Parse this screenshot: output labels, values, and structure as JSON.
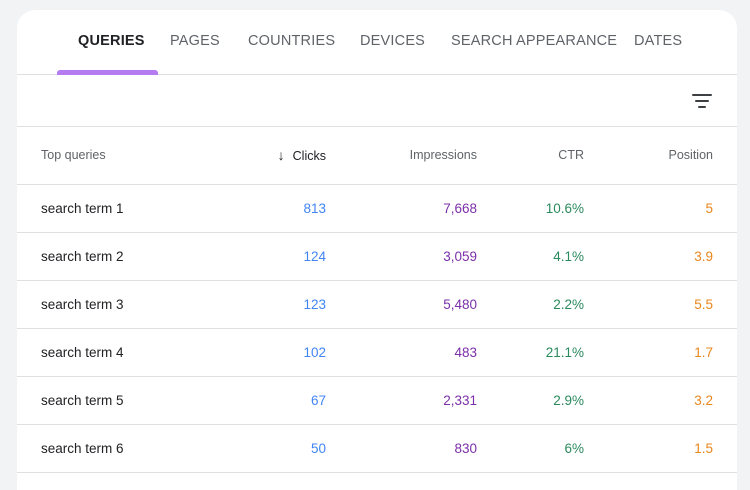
{
  "tabs": [
    {
      "label": "QUERIES",
      "active": true
    },
    {
      "label": "PAGES",
      "active": false
    },
    {
      "label": "COUNTRIES",
      "active": false
    },
    {
      "label": "DEVICES",
      "active": false
    },
    {
      "label": "SEARCH APPEARANCE",
      "active": false
    },
    {
      "label": "DATES",
      "active": false
    }
  ],
  "filter": {
    "icon": "filter-icon"
  },
  "table": {
    "columns": {
      "query": "Top queries",
      "clicks": "Clicks",
      "impressions": "Impressions",
      "ctr": "CTR",
      "position": "Position"
    },
    "sort_icon": "arrow-down-icon",
    "rows": [
      {
        "query": "search term 1",
        "clicks": "813",
        "impressions": "7,668",
        "ctr": "10.6%",
        "position": "5"
      },
      {
        "query": "search term 2",
        "clicks": "124",
        "impressions": "3,059",
        "ctr": "4.1%",
        "position": "3.9"
      },
      {
        "query": "search term 3",
        "clicks": "123",
        "impressions": "5,480",
        "ctr": "2.2%",
        "position": "5.5"
      },
      {
        "query": "search term 4",
        "clicks": "102",
        "impressions": "483",
        "ctr": "21.1%",
        "position": "1.7"
      },
      {
        "query": "search term 5",
        "clicks": "67",
        "impressions": "2,331",
        "ctr": "2.9%",
        "position": "3.2"
      },
      {
        "query": "search term 6",
        "clicks": "50",
        "impressions": "830",
        "ctr": "6%",
        "position": "1.5"
      }
    ]
  },
  "colors": {
    "tab_indicator": "#b57bf0",
    "clicks": "#4285f4",
    "impressions": "#7b2fa8",
    "ctr": "#2b8a5d",
    "position": "#e8871e"
  }
}
